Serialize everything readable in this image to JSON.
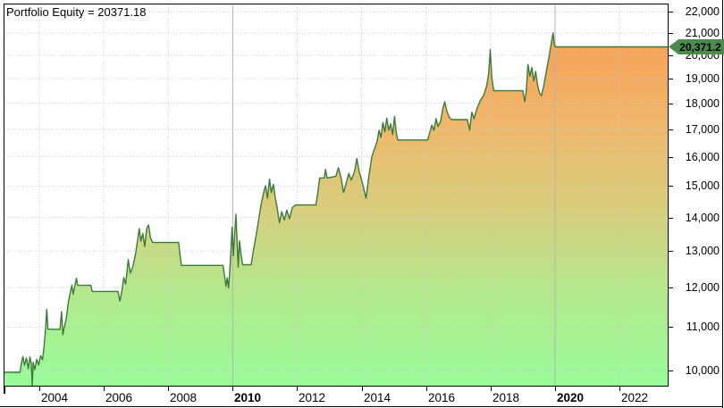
{
  "overlay": {
    "equity_label": "Portfolio Equity = 20371.18"
  },
  "price_tag": {
    "label": "20,371.2",
    "bg_color": "#4C8A4E",
    "text_color": "#000000"
  },
  "y_axis": {
    "ticks": [
      {
        "value": 22000,
        "label": "22,000"
      },
      {
        "value": 21000,
        "label": "21,000"
      },
      {
        "value": 20000,
        "label": "20,000"
      },
      {
        "value": 19000,
        "label": "19,000"
      },
      {
        "value": 18000,
        "label": "18,000"
      },
      {
        "value": 17000,
        "label": "17,000"
      },
      {
        "value": 16000,
        "label": "16,000"
      },
      {
        "value": 15000,
        "label": "15,000"
      },
      {
        "value": 14000,
        "label": "14,000"
      },
      {
        "value": 13000,
        "label": "13,000"
      },
      {
        "value": 12000,
        "label": "12,000"
      },
      {
        "value": 11000,
        "label": "11,000"
      },
      {
        "value": 10000,
        "label": "10,000"
      }
    ]
  },
  "x_axis": {
    "ticks": [
      {
        "year": 2004,
        "label": "2004",
        "bold": false
      },
      {
        "year": 2006,
        "label": "2006",
        "bold": false
      },
      {
        "year": 2008,
        "label": "2008",
        "bold": false
      },
      {
        "year": 2010,
        "label": "2010",
        "bold": true
      },
      {
        "year": 2012,
        "label": "2012",
        "bold": false
      },
      {
        "year": 2014,
        "label": "2014",
        "bold": false
      },
      {
        "year": 2016,
        "label": "2016",
        "bold": false
      },
      {
        "year": 2018,
        "label": "2018",
        "bold": false
      },
      {
        "year": 2020,
        "label": "2020",
        "bold": true
      },
      {
        "year": 2022,
        "label": "2022",
        "bold": false
      }
    ]
  },
  "chart_data": {
    "type": "area",
    "title": "Portfolio Equity",
    "final_value": 20371.18,
    "y_scale": "log",
    "xlim": [
      2002.87,
      2023.5
    ],
    "ylim": [
      9570,
      22520
    ],
    "grid": {
      "dotted_color": "#C9C9C9",
      "solid_decade_color": "#B3B3B3",
      "decade_years": [
        2010,
        2020
      ]
    },
    "line_color": "#3A7A3A",
    "fill_gradient_top_to_bottom": [
      "#F7A155",
      "#F0B66B",
      "#D8CE7D",
      "#B2EA8E",
      "#99FB99"
    ],
    "x": [
      2002.87,
      2003.4,
      2003.44,
      2003.49,
      2003.54,
      2003.6,
      2003.66,
      2003.71,
      2003.75,
      2003.78,
      2003.81,
      2003.86,
      2003.92,
      2003.98,
      2004.04,
      2004.1,
      2004.15,
      2004.19,
      2004.23,
      2004.27,
      2004.64,
      2004.69,
      2004.73,
      2004.78,
      2004.84,
      2004.9,
      2004.96,
      2005.01,
      2005.05,
      2005.1,
      2005.15,
      2005.19,
      2005.6,
      2005.64,
      2006.44,
      2006.5,
      2006.56,
      2006.62,
      2006.68,
      2006.76,
      2006.82,
      2006.9,
      2006.98,
      2007.05,
      2007.1,
      2007.15,
      2007.21,
      2007.27,
      2007.33,
      2007.39,
      2007.45,
      2007.52,
      2008.32,
      2008.36,
      2008.41,
      2009.7,
      2009.74,
      2009.79,
      2009.83,
      2009.87,
      2009.91,
      2009.95,
      2009.98,
      2010.02,
      2010.06,
      2010.1,
      2010.14,
      2010.17,
      2010.21,
      2010.26,
      2010.31,
      2010.57,
      2010.64,
      2010.72,
      2010.8,
      2010.88,
      2010.96,
      2011.02,
      2011.08,
      2011.14,
      2011.2,
      2011.26,
      2011.32,
      2011.38,
      2011.45,
      2011.52,
      2011.6,
      2011.68,
      2011.76,
      2011.85,
      2011.95,
      2012.58,
      2012.64,
      2012.7,
      2012.84,
      2012.88,
      2012.93,
      2013.2,
      2013.28,
      2013.36,
      2013.44,
      2013.52,
      2013.6,
      2013.68,
      2013.78,
      2013.85,
      2013.92,
      2014.0,
      2014.06,
      2014.14,
      2014.22,
      2014.32,
      2014.4,
      2014.48,
      2014.54,
      2014.6,
      2014.66,
      2014.72,
      2014.78,
      2014.84,
      2014.9,
      2014.96,
      2015.02,
      2015.07,
      2015.12,
      2016.05,
      2016.12,
      2016.18,
      2016.24,
      2016.31,
      2016.37,
      2016.45,
      2016.52,
      2016.58,
      2016.64,
      2016.72,
      2016.8,
      2017.28,
      2017.35,
      2017.42,
      2017.49,
      2017.58,
      2017.68,
      2017.78,
      2017.88,
      2017.94,
      2017.99,
      2018.04,
      2018.1,
      2019.0,
      2019.06,
      2019.11,
      2019.16,
      2019.22,
      2019.28,
      2019.34,
      2019.4,
      2019.46,
      2019.52,
      2019.58,
      2019.65,
      2019.73,
      2019.81,
      2019.88,
      2019.94,
      2019.98,
      2020.03,
      2023.5
    ],
    "values": [
      9960,
      9960,
      10150,
      10310,
      10120,
      10280,
      10040,
      10300,
      10150,
      9680,
      10180,
      10020,
      10250,
      10120,
      10330,
      10240,
      10560,
      10940,
      11440,
      10950,
      10950,
      11380,
      10820,
      11020,
      11230,
      11620,
      11870,
      12060,
      11830,
      12040,
      12250,
      12060,
      12060,
      11900,
      11900,
      11650,
      11900,
      12270,
      12090,
      12760,
      12390,
      12560,
      12900,
      13330,
      13660,
      13290,
      13520,
      13130,
      13660,
      13770,
      13380,
      13250,
      13250,
      12940,
      12600,
      12600,
      12360,
      12030,
      12260,
      11990,
      12460,
      13100,
      13700,
      12870,
      13500,
      14100,
      13200,
      12550,
      13300,
      12900,
      12620,
      12620,
      13000,
      13420,
      13900,
      14400,
      14800,
      15010,
      14600,
      15230,
      14790,
      15060,
      14610,
      14300,
      13840,
      14180,
      13920,
      14230,
      13960,
      14310,
      14390,
      14390,
      14800,
      15270,
      15270,
      15560,
      15270,
      15330,
      15620,
      15290,
      14790,
      15100,
      15420,
      15200,
      15500,
      15940,
      15500,
      15200,
      14940,
      14600,
      15300,
      16010,
      16280,
      16550,
      16960,
      16700,
      17250,
      16900,
      17420,
      16960,
      17200,
      16800,
      17480,
      16900,
      16600,
      16600,
      16900,
      17150,
      16950,
      17400,
      17100,
      17300,
      17800,
      18060,
      17700,
      17450,
      17360,
      17360,
      16970,
      17650,
      17400,
      17800,
      18100,
      18295,
      18700,
      19200,
      20250,
      19000,
      18500,
      18500,
      18060,
      18550,
      19600,
      19100,
      19470,
      18900,
      19300,
      18720,
      18400,
      18300,
      18700,
      19300,
      19900,
      20500,
      21000,
      20450,
      20371.18,
      20371.18
    ]
  }
}
